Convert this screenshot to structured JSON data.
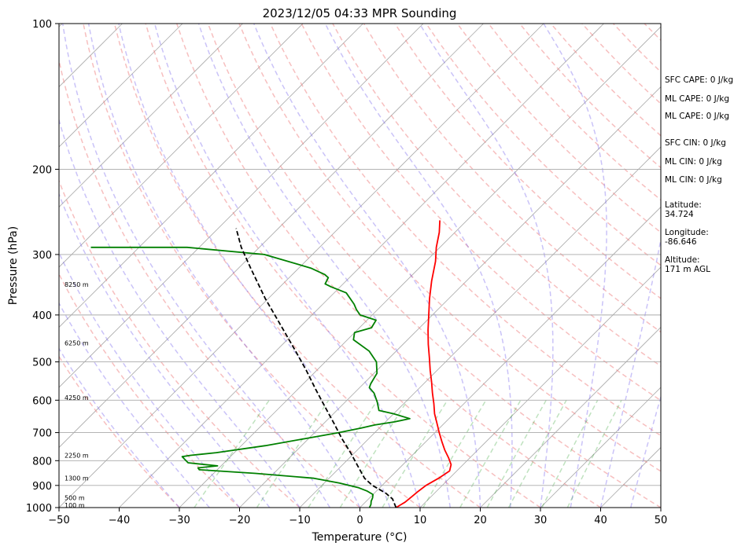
{
  "chart_data": {
    "type": "line",
    "title": "2023/12/05 04:33 MPR Sounding",
    "xlabel": "Temperature (°C)",
    "ylabel": "Pressure (hPa)",
    "xlim": [
      -50,
      50
    ],
    "ylim": [
      1000,
      100
    ],
    "y_scale": "log",
    "skew": true,
    "grid": true,
    "x_ticks": [
      "−50",
      "−40",
      "−30",
      "−20",
      "−10",
      "0",
      "10",
      "20",
      "30",
      "40",
      "50"
    ],
    "x_tick_values": [
      -50,
      -40,
      -30,
      -20,
      -10,
      0,
      10,
      20,
      30,
      40,
      50
    ],
    "y_ticks": [
      "1000",
      "900",
      "800",
      "700",
      "600",
      "500",
      "400",
      "300",
      "200",
      "100"
    ],
    "y_tick_values": [
      1000,
      900,
      800,
      700,
      600,
      500,
      400,
      300,
      200,
      100
    ],
    "background_lines": {
      "dry_adiabats": "#f08080",
      "moist_adiabats": "#7b68ee",
      "mixing_ratio": "#2ca02c",
      "isotherms": "#888888"
    },
    "series": [
      {
        "color": "#ff0000",
        "points": [
          [
            6.0,
            1000
          ],
          [
            6.6,
            975
          ],
          [
            6.8,
            950
          ],
          [
            7.0,
            925
          ],
          [
            7.3,
            900
          ],
          [
            8.2,
            870
          ],
          [
            8.8,
            840
          ],
          [
            8.0,
            815
          ],
          [
            6.5,
            790
          ],
          [
            4.5,
            760
          ],
          [
            2.6,
            730
          ],
          [
            0.7,
            700
          ],
          [
            -1.2,
            670
          ],
          [
            -3.2,
            640
          ],
          [
            -5.0,
            610
          ],
          [
            -7.0,
            580
          ],
          [
            -9.0,
            550
          ],
          [
            -11.2,
            520
          ],
          [
            -13.4,
            490
          ],
          [
            -15.8,
            460
          ],
          [
            -18.2,
            430
          ],
          [
            -20.6,
            400
          ],
          [
            -23.2,
            370
          ],
          [
            -25.8,
            340
          ],
          [
            -28.4,
            310
          ],
          [
            -30.6,
            290
          ],
          [
            -32.6,
            270
          ],
          [
            -34.5,
            255
          ]
        ]
      },
      {
        "color": "#008000",
        "points": [
          [
            1.6,
            1000
          ],
          [
            1.3,
            985
          ],
          [
            0.8,
            970
          ],
          [
            0.5,
            955
          ],
          [
            0.0,
            940
          ],
          [
            -1.5,
            925
          ],
          [
            -3.5,
            910
          ],
          [
            -7.5,
            890
          ],
          [
            -12.5,
            870
          ],
          [
            -23.0,
            850
          ],
          [
            -33.0,
            835
          ],
          [
            -33.5,
            828
          ],
          [
            -30.6,
            820
          ],
          [
            -36.0,
            808
          ],
          [
            -38.0,
            785
          ],
          [
            -36.8,
            780
          ],
          [
            -33.0,
            770
          ],
          [
            -26.0,
            745
          ],
          [
            -20.5,
            720
          ],
          [
            -16.0,
            700
          ],
          [
            -13.0,
            685
          ],
          [
            -11.3,
            675
          ],
          [
            -8.5,
            665
          ],
          [
            -6.5,
            655
          ],
          [
            -10.0,
            640
          ],
          [
            -13.0,
            630
          ],
          [
            -14.7,
            605
          ],
          [
            -16.7,
            580
          ],
          [
            -18.4,
            565
          ],
          [
            -18.8,
            555
          ],
          [
            -19.5,
            528
          ],
          [
            -21.5,
            500
          ],
          [
            -24.5,
            475
          ],
          [
            -29.0,
            450
          ],
          [
            -30.0,
            435
          ],
          [
            -28.0,
            425
          ],
          [
            -28.5,
            410
          ],
          [
            -32.0,
            400
          ],
          [
            -33.5,
            390
          ],
          [
            -34.8,
            380
          ],
          [
            -38.0,
            360
          ],
          [
            -41.5,
            350
          ],
          [
            -43.0,
            345
          ],
          [
            -43.5,
            335
          ],
          [
            -44.6,
            330
          ],
          [
            -48.0,
            320
          ],
          [
            -58.0,
            300
          ],
          [
            -72.0,
            290
          ],
          [
            -88.0,
            290
          ]
        ]
      },
      {
        "color": "#000000",
        "style": "dashed",
        "points": [
          [
            6.0,
            1000
          ],
          [
            4.0,
            960
          ],
          [
            2.0,
            935
          ],
          [
            0.5,
            920
          ],
          [
            -1.6,
            900
          ],
          [
            -4.1,
            870
          ],
          [
            -7.3,
            820
          ],
          [
            -10.7,
            770
          ],
          [
            -14.5,
            720
          ],
          [
            -18.3,
            670
          ],
          [
            -22.5,
            620
          ],
          [
            -27.0,
            570
          ],
          [
            -31.8,
            520
          ],
          [
            -37.3,
            470
          ],
          [
            -43.5,
            420
          ],
          [
            -50.5,
            370
          ],
          [
            -58.0,
            320
          ],
          [
            -63.0,
            290
          ],
          [
            -67.0,
            265
          ]
        ]
      }
    ],
    "height_labels": [
      {
        "text": "100 m",
        "p": 988
      },
      {
        "text": "500 m",
        "p": 955
      },
      {
        "text": "1300 m",
        "p": 870
      },
      {
        "text": "2250 m",
        "p": 780
      },
      {
        "text": "4250 m",
        "p": 593
      },
      {
        "text": "6250 m",
        "p": 457
      },
      {
        "text": "8250 m",
        "p": 346
      }
    ],
    "side_info": [
      "SFC CAPE: 0 J/kg",
      "ML CAPE: 0 J/kg",
      "ML CAPE: 0 J/kg",
      "SFC CIN: 0 J/kg",
      "ML CIN: 0 J/kg",
      "ML CIN: 0 J/kg",
      "Latitude:",
      "34.724",
      "Longitude:",
      "-86.646",
      "Altitude:",
      "171 m AGL"
    ]
  }
}
